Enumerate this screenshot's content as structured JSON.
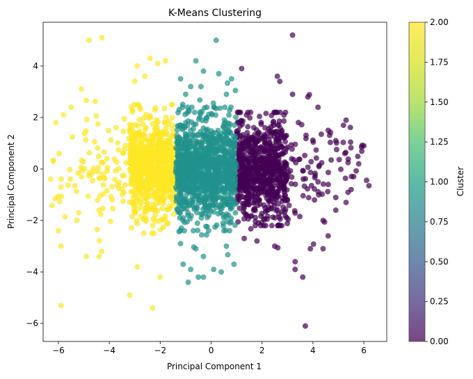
{
  "chart_data": {
    "type": "scatter",
    "title": "K-Means Clustering",
    "xlabel": "Principal Component 1",
    "ylabel": "Principal Component 2",
    "xlim": [
      -6.6,
      6.9
    ],
    "ylim": [
      -6.7,
      5.7
    ],
    "xticks": [
      -6,
      -4,
      -2,
      0,
      2,
      4,
      6
    ],
    "yticks": [
      -6,
      -4,
      -2,
      0,
      2,
      4
    ],
    "xtick_labels": [
      "−6",
      "−4",
      "−2",
      "0",
      "2",
      "4",
      "6"
    ],
    "ytick_labels": [
      "−6",
      "−4",
      "−2",
      "0",
      "2",
      "4"
    ],
    "grid": false,
    "colormap": "viridis",
    "marker_alpha": 0.7,
    "colorbar": {
      "label": "Cluster",
      "range": [
        0.0,
        2.0
      ],
      "ticks": [
        "0.00",
        "0.25",
        "0.50",
        "0.75",
        "1.00",
        "1.25",
        "1.50",
        "1.75",
        "2.00"
      ]
    },
    "clusters": [
      {
        "value": 0,
        "color": "#440154",
        "x_range": [
          1.0,
          6.2
        ],
        "y_range": [
          -6.1,
          5.2
        ],
        "dense_x": [
          1.0,
          3.0
        ],
        "dense_y": [
          -2.2,
          2.2
        ],
        "outliers": [
          [
            3.2,
            5.2
          ],
          [
            1.2,
            3.9
          ],
          [
            2.6,
            3.6
          ],
          [
            2.7,
            3.4
          ],
          [
            5.3,
            1.9
          ],
          [
            5.2,
            1.7
          ],
          [
            4.6,
            1.5
          ],
          [
            4.9,
            1.1
          ],
          [
            6.0,
            0.9
          ],
          [
            5.8,
            0.2
          ],
          [
            5.6,
            -0.3
          ],
          [
            6.2,
            -0.65
          ],
          [
            5.5,
            -0.8
          ],
          [
            5.3,
            -1.3
          ],
          [
            4.9,
            -1.6
          ],
          [
            4.4,
            -2.0
          ],
          [
            4.6,
            -2.6
          ],
          [
            4.4,
            -3.1
          ],
          [
            3.9,
            -3.1
          ],
          [
            3.3,
            -3.6
          ],
          [
            3.3,
            -3.9
          ],
          [
            3.6,
            -4.2
          ],
          [
            3.7,
            -6.1
          ],
          [
            2.5,
            -3.0
          ],
          [
            1.8,
            -2.8
          ],
          [
            1.3,
            -2.7
          ],
          [
            4.2,
            2.4
          ],
          [
            3.8,
            2.8
          ],
          [
            3.2,
            2.9
          ]
        ]
      },
      {
        "value": 1,
        "color": "#21918c",
        "x_range": [
          -1.4,
          1.0
        ],
        "y_range": [
          -4.5,
          5.0
        ],
        "dense_x": [
          -1.35,
          0.95
        ],
        "dense_y": [
          -2.4,
          2.4
        ],
        "outliers": [
          [
            0.2,
            5.0
          ],
          [
            -0.6,
            4.2
          ],
          [
            -0.3,
            3.8
          ],
          [
            0.3,
            3.7
          ],
          [
            -1.2,
            3.5
          ],
          [
            0.8,
            3.5
          ],
          [
            -0.4,
            3.2
          ],
          [
            -0.8,
            3.2
          ],
          [
            -1.0,
            2.9
          ],
          [
            0.6,
            2.9
          ],
          [
            -1.2,
            -2.9
          ],
          [
            -0.6,
            -3.1
          ],
          [
            -0.3,
            -3.4
          ],
          [
            0.6,
            -3.0
          ],
          [
            -1.1,
            -3.7
          ],
          [
            0.9,
            -3.7
          ],
          [
            -0.8,
            -3.9
          ],
          [
            0.4,
            -4.0
          ],
          [
            -0.3,
            -4.2
          ],
          [
            -0.5,
            -4.2
          ],
          [
            -0.9,
            -4.4
          ],
          [
            0.1,
            -3.9
          ]
        ]
      },
      {
        "value": 2,
        "color": "#fde725",
        "x_range": [
          -6.3,
          -1.4
        ],
        "y_range": [
          -5.4,
          5.1
        ],
        "dense_x": [
          -3.2,
          -1.4
        ],
        "dense_y": [
          -2.5,
          2.5
        ],
        "outliers": [
          [
            -4.3,
            5.1
          ],
          [
            -4.8,
            5.0
          ],
          [
            -2.4,
            4.3
          ],
          [
            -2.1,
            4.1
          ],
          [
            -1.8,
            4.2
          ],
          [
            -2.9,
            4.0
          ],
          [
            -2.6,
            3.6
          ],
          [
            -5.1,
            3.1
          ],
          [
            -3.0,
            3.4
          ],
          [
            -5.5,
            2.4
          ],
          [
            -5.8,
            2.1
          ],
          [
            -6.1,
            1.8
          ],
          [
            -6.2,
            0.3
          ],
          [
            -6.3,
            -0.4
          ],
          [
            -5.9,
            -0.7
          ],
          [
            -6.0,
            -2.4
          ],
          [
            -5.9,
            -3.0
          ],
          [
            -4.9,
            -3.4
          ],
          [
            -4.4,
            -3.4
          ],
          [
            -4.3,
            -3.2
          ],
          [
            -2.9,
            -3.8
          ],
          [
            -2.0,
            -4.2
          ],
          [
            -3.2,
            -4.9
          ],
          [
            -5.9,
            -5.3
          ],
          [
            -2.3,
            -5.4
          ],
          [
            -4.4,
            -1.6
          ],
          [
            -5.2,
            -1.7
          ]
        ]
      }
    ]
  }
}
